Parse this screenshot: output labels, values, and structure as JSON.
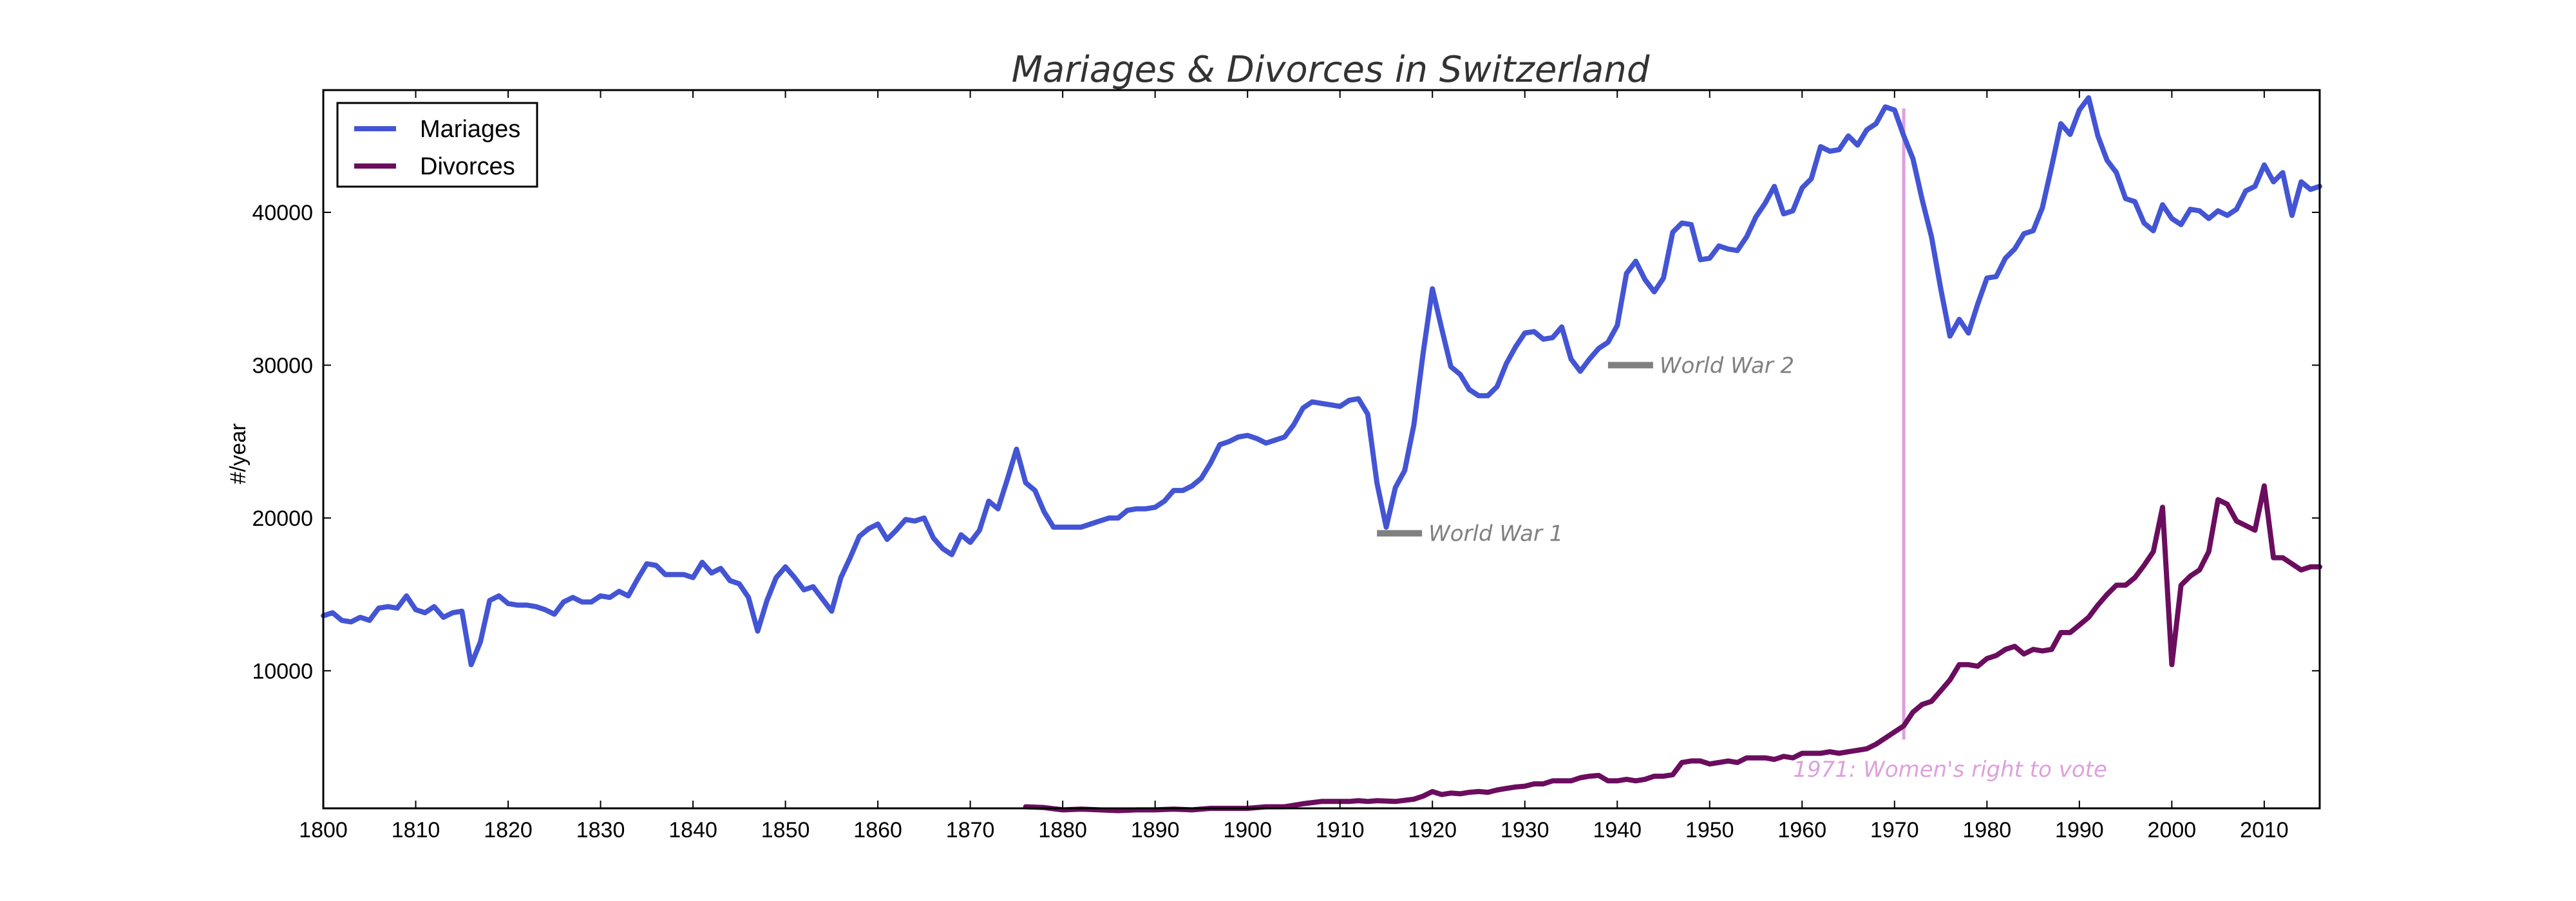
{
  "chart_data": {
    "type": "line",
    "title": "Mariages & Divorces in Switzerland",
    "xlabel": "",
    "ylabel": "#/year",
    "xlim": [
      1800,
      2016
    ],
    "ylim": [
      1000,
      48000
    ],
    "x_ticks": [
      1800,
      1810,
      1820,
      1830,
      1840,
      1850,
      1860,
      1870,
      1880,
      1890,
      1900,
      1910,
      1920,
      1930,
      1940,
      1950,
      1960,
      1970,
      1980,
      1990,
      2000,
      2010
    ],
    "y_ticks": [
      10000,
      20000,
      30000,
      40000
    ],
    "grid": false,
    "legend_position": "top-left",
    "series": [
      {
        "name": "Mariages",
        "color": "#4355d4",
        "x": [
          1800,
          1801,
          1802,
          1803,
          1804,
          1805,
          1806,
          1807,
          1808,
          1809,
          1810,
          1811,
          1812,
          1813,
          1814,
          1815,
          1816,
          1817,
          1818,
          1819,
          1820,
          1821,
          1822,
          1823,
          1824,
          1825,
          1826,
          1827,
          1828,
          1829,
          1830,
          1831,
          1832,
          1833,
          1834,
          1835,
          1836,
          1837,
          1838,
          1839,
          1840,
          1841,
          1842,
          1843,
          1844,
          1845,
          1846,
          1847,
          1848,
          1849,
          1850,
          1851,
          1852,
          1853,
          1854,
          1855,
          1856,
          1857,
          1858,
          1859,
          1860,
          1861,
          1862,
          1863,
          1864,
          1865,
          1866,
          1867,
          1868,
          1869,
          1870,
          1871,
          1872,
          1873,
          1874,
          1875,
          1876,
          1877,
          1878,
          1879,
          1880,
          1881,
          1882,
          1883,
          1884,
          1885,
          1886,
          1887,
          1888,
          1889,
          1890,
          1891,
          1892,
          1893,
          1894,
          1895,
          1896,
          1897,
          1898,
          1899,
          1900,
          1901,
          1902,
          1903,
          1904,
          1905,
          1906,
          1907,
          1908,
          1909,
          1910,
          1911,
          1912,
          1913,
          1914,
          1915,
          1916,
          1917,
          1918,
          1919,
          1920,
          1921,
          1922,
          1923,
          1924,
          1925,
          1926,
          1927,
          1928,
          1929,
          1930,
          1931,
          1932,
          1933,
          1934,
          1935,
          1936,
          1937,
          1938,
          1939,
          1940,
          1941,
          1942,
          1943,
          1944,
          1945,
          1946,
          1947,
          1948,
          1949,
          1950,
          1951,
          1952,
          1953,
          1954,
          1955,
          1956,
          1957,
          1958,
          1959,
          1960,
          1961,
          1962,
          1963,
          1964,
          1965,
          1966,
          1967,
          1968,
          1969,
          1970,
          1971,
          1972,
          1973,
          1974,
          1975,
          1976,
          1977,
          1978,
          1979,
          1980,
          1981,
          1982,
          1983,
          1984,
          1985,
          1986,
          1987,
          1988,
          1989,
          1990,
          1991,
          1992,
          1993,
          1994,
          1995,
          1996,
          1997,
          1998,
          1999,
          2000,
          2001,
          2002,
          2003,
          2004,
          2005,
          2006,
          2007,
          2008,
          2009,
          2010,
          2011,
          2012,
          2013,
          2014,
          2015,
          2016
        ],
        "values": [
          13600,
          13800,
          13300,
          13200,
          13500,
          13300,
          14100,
          14200,
          14100,
          14900,
          14000,
          13800,
          14200,
          13500,
          13800,
          13900,
          10400,
          11900,
          14600,
          14900,
          14400,
          14300,
          14300,
          14200,
          14000,
          13700,
          14500,
          14800,
          14500,
          14500,
          14900,
          14800,
          15200,
          14900,
          16000,
          17000,
          16900,
          16300,
          16300,
          16300,
          16100,
          17100,
          16400,
          16700,
          15900,
          15700,
          14800,
          12600,
          14600,
          16100,
          16800,
          16100,
          15300,
          15500,
          14700,
          13900,
          16100,
          17400,
          18800,
          19300,
          19600,
          18600,
          19200,
          19900,
          19800,
          20000,
          18700,
          18000,
          17600,
          18900,
          18400,
          19200,
          21100,
          20600,
          22500,
          24500,
          22300,
          21800,
          20400,
          19400,
          19400,
          19400,
          19400,
          19600,
          19800,
          20000,
          20000,
          20500,
          20600,
          20600,
          20700,
          21100,
          21800,
          21800,
          22100,
          22600,
          23600,
          24800,
          25000,
          25300,
          25400,
          25200,
          24900,
          25100,
          25300,
          26100,
          27200,
          27600,
          27500,
          27400,
          27300,
          27700,
          27800,
          26800,
          22300,
          19400,
          22000,
          23100,
          26100,
          30800,
          35000,
          32400,
          29900,
          29400,
          28400,
          28000,
          28000,
          28600,
          30100,
          31200,
          32100,
          32200,
          31700,
          31800,
          32500,
          30400,
          29600,
          30400,
          31100,
          31500,
          32600,
          36000,
          36800,
          35600,
          34800,
          35700,
          38700,
          39300,
          39200,
          36900,
          37000,
          37800,
          37600,
          37500,
          38400,
          39700,
          40600,
          41700,
          39900,
          40100,
          41600,
          42200,
          44300,
          44000,
          44100,
          45000,
          44400,
          45400,
          45800,
          46900,
          46700,
          45000,
          43500,
          40800,
          38400,
          35000,
          31900,
          33000,
          32100,
          34000,
          35700,
          35800,
          37000,
          37600,
          38600,
          38800,
          40300,
          43000,
          45800,
          45100,
          46700,
          47500,
          45000,
          43400,
          42600,
          40900,
          40700,
          39300,
          38800,
          40500,
          39600,
          39200,
          40200,
          40100,
          39600,
          40100,
          39800,
          40200,
          41400,
          41700,
          43100,
          42000,
          42600,
          39800,
          42000,
          41500,
          41700
        ]
      },
      {
        "name": "Divorces",
        "color": "#6b0d5e",
        "x": [
          1876,
          1878,
          1880,
          1882,
          1884,
          1886,
          1888,
          1890,
          1892,
          1894,
          1896,
          1898,
          1900,
          1902,
          1904,
          1906,
          1908,
          1910,
          1911,
          1912,
          1913,
          1914,
          1916,
          1918,
          1919,
          1920,
          1921,
          1922,
          1923,
          1924,
          1925,
          1926,
          1927,
          1928,
          1929,
          1930,
          1931,
          1932,
          1933,
          1934,
          1935,
          1936,
          1937,
          1938,
          1939,
          1940,
          1941,
          1942,
          1943,
          1944,
          1945,
          1946,
          1947,
          1948,
          1949,
          1950,
          1951,
          1952,
          1953,
          1954,
          1955,
          1956,
          1957,
          1958,
          1959,
          1960,
          1961,
          1962,
          1963,
          1964,
          1965,
          1966,
          1967,
          1968,
          1969,
          1970,
          1971,
          1972,
          1973,
          1974,
          1975,
          1976,
          1977,
          1978,
          1979,
          1980,
          1981,
          1982,
          1983,
          1984,
          1985,
          1986,
          1987,
          1988,
          1989,
          1990,
          1991,
          1992,
          1993,
          1994,
          1995,
          1996,
          1997,
          1998,
          1999,
          2000,
          2001,
          2002,
          2003,
          2004,
          2005,
          2006,
          2007,
          2008,
          2009,
          2010,
          2011,
          2012,
          2013,
          2014,
          2015,
          2016
        ],
        "values": [
          1100,
          1050,
          900,
          950,
          900,
          850,
          900,
          900,
          950,
          900,
          1000,
          1000,
          1000,
          1100,
          1100,
          1300,
          1450,
          1450,
          1450,
          1500,
          1450,
          1500,
          1450,
          1600,
          1800,
          2100,
          1900,
          2000,
          1950,
          2050,
          2100,
          2050,
          2200,
          2300,
          2400,
          2450,
          2600,
          2600,
          2800,
          2800,
          2800,
          3000,
          3100,
          3150,
          2800,
          2800,
          2900,
          2800,
          2900,
          3100,
          3100,
          3200,
          4000,
          4100,
          4100,
          3900,
          4000,
          4100,
          4000,
          4300,
          4300,
          4300,
          4200,
          4400,
          4300,
          4600,
          4600,
          4600,
          4700,
          4600,
          4700,
          4800,
          4900,
          5200,
          5600,
          6000,
          6400,
          7300,
          7800,
          8000,
          8700,
          9400,
          10400,
          10400,
          10300,
          10800,
          11000,
          11400,
          11600,
          11100,
          11400,
          11300,
          11400,
          12500,
          12500,
          13000,
          13500,
          14300,
          15000,
          15600,
          15600,
          16100,
          16900,
          17800,
          20700,
          10400,
          15600,
          16200,
          16600,
          17800,
          21200,
          20900,
          19800,
          19500,
          19200,
          22100,
          17400,
          17400,
          17000,
          16600,
          16800,
          16800
        ]
      }
    ],
    "annotations": [
      {
        "text": "World War 1",
        "x": 1914,
        "y": 19000,
        "color": "#808080"
      },
      {
        "text": "World War 2",
        "x": 1939,
        "y": 30000,
        "color": "#808080"
      },
      {
        "text": "1971: Women's right to vote",
        "x": 1971,
        "y": 5500,
        "color": "#dda0dd"
      }
    ]
  }
}
